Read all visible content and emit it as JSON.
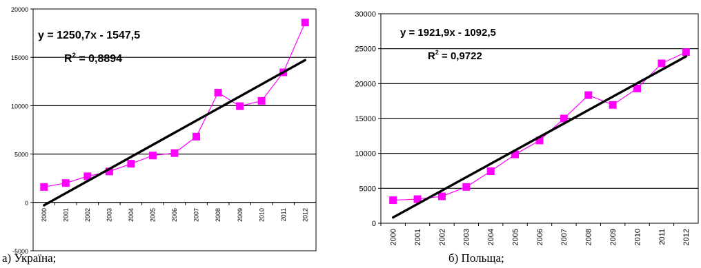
{
  "chart_data": [
    {
      "type": "line",
      "x": [
        "2000",
        "2001",
        "2002",
        "2003",
        "2004",
        "2005",
        "2006",
        "2007",
        "2008",
        "2009",
        "2010",
        "2011",
        "2012"
      ],
      "series": [
        {
          "values": [
            1600,
            2000,
            2700,
            3200,
            4000,
            4850,
            5100,
            6800,
            11350,
            9950,
            10500,
            13450,
            18600
          ]
        }
      ],
      "trendline": {
        "slope": 1250.7,
        "intercept": -1547.5
      },
      "equation": "y = 1250,7x - 1547,5",
      "r2_label": "R",
      "r2_sup": "2",
      "r2_value": " = 0,8894",
      "ylim": [
        -5000,
        20000
      ],
      "y_ticks": [
        "20000",
        "15000",
        "10000",
        "5000",
        "0",
        "-5000"
      ],
      "y_tick_values": [
        20000,
        15000,
        10000,
        5000,
        0,
        -5000
      ],
      "grid": true,
      "legend": "none",
      "caption": "а) Україна;",
      "colors": {
        "series": "#ff00ff",
        "trend": "#000000"
      }
    },
    {
      "type": "line",
      "x": [
        "2000",
        "2001",
        "2002",
        "2003",
        "2004",
        "2005",
        "2006",
        "2007",
        "2008",
        "2009",
        "2010",
        "2011",
        "2012"
      ],
      "series": [
        {
          "values": [
            3300,
            3450,
            3850,
            5200,
            7450,
            9850,
            11850,
            15000,
            18350,
            16950,
            19300,
            22900,
            24500
          ]
        }
      ],
      "trendline": {
        "slope": 1921.9,
        "intercept": -1092.5
      },
      "equation": "y = 1921,9x - 1092,5",
      "r2_label": "R",
      "r2_sup": "2",
      "r2_value": " = 0,9722",
      "ylim": [
        0,
        30000
      ],
      "y_ticks": [
        "30000",
        "25000",
        "20000",
        "15000",
        "10000",
        "5000",
        "0"
      ],
      "y_tick_values": [
        30000,
        25000,
        20000,
        15000,
        10000,
        5000,
        0
      ],
      "grid": true,
      "legend": "none",
      "caption": "б) Польща;",
      "colors": {
        "series": "#ff00ff",
        "trend": "#000000"
      }
    }
  ]
}
